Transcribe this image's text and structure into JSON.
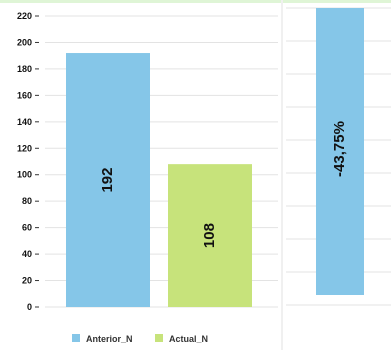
{
  "chart_data": [
    {
      "type": "bar",
      "categories": [
        "Anterior_N",
        "Actual_N"
      ],
      "values": [
        192,
        108
      ],
      "ylim": [
        0,
        220
      ],
      "yticks": [
        0,
        20,
        40,
        60,
        80,
        100,
        120,
        140,
        160,
        180,
        200,
        220
      ],
      "legend": [
        "Anterior_N",
        "Actual_N"
      ],
      "legend_position": "bottom",
      "colors": [
        "#85c6e8",
        "#c7e37b"
      ],
      "grid": true
    },
    {
      "type": "bar",
      "categories": [
        ""
      ],
      "values": [
        -43.75
      ],
      "labels": [
        "-43,75%"
      ],
      "colors": [
        "#85c6e8"
      ],
      "grid": true
    }
  ]
}
